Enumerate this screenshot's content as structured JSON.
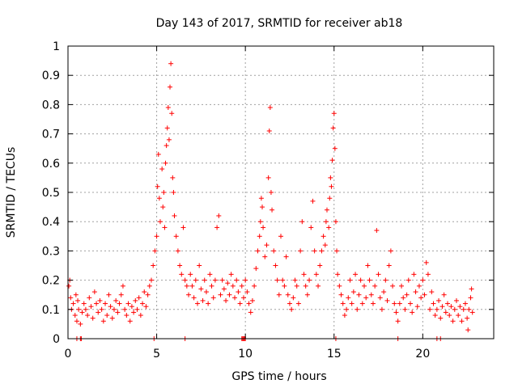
{
  "chart_data": {
    "type": "scatter",
    "title": "Day 143 of 2017, SRMTID for receiver ab18",
    "xlabel": "GPS time / hours",
    "ylabel": "SRMTID / TECUs",
    "xlim": [
      0,
      24
    ],
    "ylim": [
      0,
      1
    ],
    "xticks": [
      0,
      5,
      10,
      15,
      20
    ],
    "xtick_labels": [
      "0",
      "5",
      "10",
      "15",
      "20"
    ],
    "yticks": [
      0,
      0.1,
      0.2,
      0.3,
      0.4,
      0.5,
      0.6,
      0.7,
      0.8,
      0.9,
      1
    ],
    "ytick_labels": [
      "0",
      "0.1",
      "0.2",
      "0.3",
      "0.4",
      "0.5",
      "0.6",
      "0.7",
      "0.8",
      "0.9",
      "1"
    ],
    "grid": true,
    "marker": "+",
    "series": [
      {
        "name": "SRMTID",
        "color": "#ff0000",
        "points": [
          [
            0.05,
            0.18
          ],
          [
            0.1,
            0.2
          ],
          [
            0.15,
            0.14
          ],
          [
            0.2,
            0.1
          ],
          [
            0.3,
            0.12
          ],
          [
            0.4,
            0.08
          ],
          [
            0.45,
            0.15
          ],
          [
            0.5,
            0.06
          ],
          [
            0.55,
            0.13
          ],
          [
            0.6,
            0.1
          ],
          [
            0.7,
            0.05
          ],
          [
            0.8,
            0.09
          ],
          [
            0.9,
            0.12
          ],
          [
            1.0,
            0.1
          ],
          [
            1.1,
            0.08
          ],
          [
            1.2,
            0.14
          ],
          [
            1.3,
            0.11
          ],
          [
            1.4,
            0.07
          ],
          [
            1.5,
            0.16
          ],
          [
            1.6,
            0.12
          ],
          [
            1.7,
            0.09
          ],
          [
            1.8,
            0.13
          ],
          [
            1.9,
            0.1
          ],
          [
            2.0,
            0.06
          ],
          [
            2.1,
            0.12
          ],
          [
            2.2,
            0.08
          ],
          [
            2.3,
            0.15
          ],
          [
            2.4,
            0.11
          ],
          [
            2.5,
            0.07
          ],
          [
            2.6,
            0.1
          ],
          [
            2.7,
            0.13
          ],
          [
            2.8,
            0.09
          ],
          [
            2.9,
            0.12
          ],
          [
            3.0,
            0.15
          ],
          [
            3.1,
            0.18
          ],
          [
            3.2,
            0.1
          ],
          [
            3.3,
            0.08
          ],
          [
            3.4,
            0.12
          ],
          [
            3.5,
            0.06
          ],
          [
            3.6,
            0.11
          ],
          [
            3.7,
            0.09
          ],
          [
            3.8,
            0.13
          ],
          [
            3.9,
            0.1
          ],
          [
            4.0,
            0.14
          ],
          [
            4.1,
            0.08
          ],
          [
            4.2,
            0.12
          ],
          [
            4.3,
            0.16
          ],
          [
            4.4,
            0.11
          ],
          [
            4.5,
            0.15
          ],
          [
            4.6,
            0.18
          ],
          [
            4.7,
            0.2
          ],
          [
            4.8,
            0.25
          ],
          [
            4.9,
            0.3
          ],
          [
            5.0,
            0.35
          ],
          [
            5.05,
            0.52
          ],
          [
            5.1,
            0.63
          ],
          [
            5.15,
            0.48
          ],
          [
            5.2,
            0.4
          ],
          [
            5.3,
            0.58
          ],
          [
            5.35,
            0.45
          ],
          [
            5.4,
            0.5
          ],
          [
            5.45,
            0.38
          ],
          [
            5.5,
            0.6
          ],
          [
            5.55,
            0.66
          ],
          [
            5.6,
            0.72
          ],
          [
            5.65,
            0.79
          ],
          [
            5.7,
            0.68
          ],
          [
            5.75,
            0.86
          ],
          [
            5.8,
            0.94
          ],
          [
            5.85,
            0.77
          ],
          [
            5.9,
            0.55
          ],
          [
            5.95,
            0.5
          ],
          [
            6.0,
            0.42
          ],
          [
            6.1,
            0.35
          ],
          [
            6.2,
            0.3
          ],
          [
            6.3,
            0.25
          ],
          [
            6.4,
            0.22
          ],
          [
            6.5,
            0.38
          ],
          [
            6.6,
            0.2
          ],
          [
            6.7,
            0.18
          ],
          [
            6.8,
            0.15
          ],
          [
            6.9,
            0.22
          ],
          [
            7.0,
            0.18
          ],
          [
            7.1,
            0.14
          ],
          [
            7.2,
            0.2
          ],
          [
            7.3,
            0.12
          ],
          [
            7.4,
            0.25
          ],
          [
            7.5,
            0.17
          ],
          [
            7.6,
            0.13
          ],
          [
            7.7,
            0.2
          ],
          [
            7.8,
            0.16
          ],
          [
            7.9,
            0.12
          ],
          [
            8.0,
            0.22
          ],
          [
            8.1,
            0.18
          ],
          [
            8.2,
            0.14
          ],
          [
            8.3,
            0.2
          ],
          [
            8.4,
            0.38
          ],
          [
            8.5,
            0.42
          ],
          [
            8.6,
            0.15
          ],
          [
            8.7,
            0.2
          ],
          [
            8.8,
            0.17
          ],
          [
            8.9,
            0.13
          ],
          [
            9.0,
            0.19
          ],
          [
            9.1,
            0.15
          ],
          [
            9.2,
            0.22
          ],
          [
            9.3,
            0.18
          ],
          [
            9.4,
            0.14
          ],
          [
            9.5,
            0.2
          ],
          [
            9.6,
            0.16
          ],
          [
            9.7,
            0.12
          ],
          [
            9.8,
            0.18
          ],
          [
            9.9,
            0.14
          ],
          [
            10.0,
            0.2
          ],
          [
            10.1,
            0.16
          ],
          [
            10.2,
            0.12
          ],
          [
            10.3,
            0.09
          ],
          [
            10.4,
            0.13
          ],
          [
            10.5,
            0.18
          ],
          [
            10.6,
            0.24
          ],
          [
            10.7,
            0.3
          ],
          [
            10.8,
            0.35
          ],
          [
            10.85,
            0.4
          ],
          [
            10.9,
            0.48
          ],
          [
            10.95,
            0.45
          ],
          [
            11.0,
            0.38
          ],
          [
            11.1,
            0.28
          ],
          [
            11.2,
            0.32
          ],
          [
            11.3,
            0.55
          ],
          [
            11.35,
            0.71
          ],
          [
            11.4,
            0.79
          ],
          [
            11.45,
            0.5
          ],
          [
            11.5,
            0.44
          ],
          [
            11.6,
            0.3
          ],
          [
            11.7,
            0.25
          ],
          [
            11.8,
            0.2
          ],
          [
            11.9,
            0.15
          ],
          [
            12.0,
            0.35
          ],
          [
            12.1,
            0.2
          ],
          [
            12.2,
            0.18
          ],
          [
            12.3,
            0.28
          ],
          [
            12.4,
            0.15
          ],
          [
            12.5,
            0.12
          ],
          [
            12.6,
            0.1
          ],
          [
            12.7,
            0.14
          ],
          [
            12.8,
            0.2
          ],
          [
            12.9,
            0.18
          ],
          [
            13.0,
            0.12
          ],
          [
            13.1,
            0.3
          ],
          [
            13.2,
            0.4
          ],
          [
            13.3,
            0.22
          ],
          [
            13.4,
            0.18
          ],
          [
            13.5,
            0.15
          ],
          [
            13.6,
            0.2
          ],
          [
            13.7,
            0.38
          ],
          [
            13.8,
            0.47
          ],
          [
            13.9,
            0.3
          ],
          [
            14.0,
            0.22
          ],
          [
            14.1,
            0.18
          ],
          [
            14.2,
            0.25
          ],
          [
            14.3,
            0.3
          ],
          [
            14.4,
            0.35
          ],
          [
            14.5,
            0.32
          ],
          [
            14.55,
            0.4
          ],
          [
            14.6,
            0.44
          ],
          [
            14.7,
            0.38
          ],
          [
            14.75,
            0.48
          ],
          [
            14.8,
            0.55
          ],
          [
            14.85,
            0.52
          ],
          [
            14.9,
            0.61
          ],
          [
            14.95,
            0.72
          ],
          [
            15.0,
            0.77
          ],
          [
            15.05,
            0.65
          ],
          [
            15.1,
            0.4
          ],
          [
            15.15,
            0.3
          ],
          [
            15.2,
            0.22
          ],
          [
            15.3,
            0.18
          ],
          [
            15.4,
            0.15
          ],
          [
            15.5,
            0.12
          ],
          [
            15.6,
            0.08
          ],
          [
            15.7,
            0.1
          ],
          [
            15.8,
            0.14
          ],
          [
            15.9,
            0.2
          ],
          [
            16.0,
            0.12
          ],
          [
            16.1,
            0.16
          ],
          [
            16.2,
            0.22
          ],
          [
            16.3,
            0.1
          ],
          [
            16.4,
            0.15
          ],
          [
            16.5,
            0.2
          ],
          [
            16.6,
            0.12
          ],
          [
            16.7,
            0.18
          ],
          [
            16.8,
            0.14
          ],
          [
            16.9,
            0.25
          ],
          [
            17.0,
            0.2
          ],
          [
            17.1,
            0.15
          ],
          [
            17.2,
            0.12
          ],
          [
            17.3,
            0.18
          ],
          [
            17.4,
            0.37
          ],
          [
            17.5,
            0.22
          ],
          [
            17.6,
            0.14
          ],
          [
            17.7,
            0.1
          ],
          [
            17.8,
            0.16
          ],
          [
            17.9,
            0.2
          ],
          [
            18.0,
            0.13
          ],
          [
            18.1,
            0.25
          ],
          [
            18.2,
            0.3
          ],
          [
            18.3,
            0.18
          ],
          [
            18.4,
            0.12
          ],
          [
            18.5,
            0.09
          ],
          [
            18.6,
            0.06
          ],
          [
            18.7,
            0.12
          ],
          [
            18.8,
            0.18
          ],
          [
            18.9,
            0.14
          ],
          [
            19.0,
            0.1
          ],
          [
            19.1,
            0.15
          ],
          [
            19.2,
            0.2
          ],
          [
            19.3,
            0.12
          ],
          [
            19.4,
            0.09
          ],
          [
            19.5,
            0.22
          ],
          [
            19.6,
            0.16
          ],
          [
            19.7,
            0.11
          ],
          [
            19.8,
            0.18
          ],
          [
            19.9,
            0.14
          ],
          [
            20.0,
            0.2
          ],
          [
            20.1,
            0.15
          ],
          [
            20.2,
            0.26
          ],
          [
            20.3,
            0.22
          ],
          [
            20.4,
            0.1
          ],
          [
            20.5,
            0.16
          ],
          [
            20.6,
            0.12
          ],
          [
            20.7,
            0.08
          ],
          [
            20.8,
            0.1
          ],
          [
            20.9,
            0.13
          ],
          [
            21.0,
            0.07
          ],
          [
            21.1,
            0.11
          ],
          [
            21.2,
            0.15
          ],
          [
            21.3,
            0.09
          ],
          [
            21.4,
            0.12
          ],
          [
            21.5,
            0.08
          ],
          [
            21.6,
            0.11
          ],
          [
            21.7,
            0.06
          ],
          [
            21.8,
            0.1
          ],
          [
            21.9,
            0.13
          ],
          [
            22.0,
            0.08
          ],
          [
            22.1,
            0.11
          ],
          [
            22.2,
            0.06
          ],
          [
            22.3,
            0.1
          ],
          [
            22.4,
            0.12
          ],
          [
            22.5,
            0.07
          ],
          [
            22.55,
            0.03
          ],
          [
            22.6,
            0.1
          ],
          [
            22.7,
            0.14
          ],
          [
            22.75,
            0.17
          ],
          [
            22.8,
            0.09
          ],
          [
            0.5,
            0
          ],
          [
            0.7,
            0
          ],
          [
            0.75,
            0
          ],
          [
            9.8,
            0
          ],
          [
            9.85,
            0
          ],
          [
            9.9,
            0
          ],
          [
            9.95,
            0
          ],
          [
            10.0,
            0
          ],
          [
            20.8,
            0
          ],
          [
            21.0,
            0
          ],
          [
            18.6,
            0
          ],
          [
            15.1,
            0
          ],
          [
            4.85,
            0
          ],
          [
            6.6,
            0
          ]
        ]
      }
    ]
  }
}
